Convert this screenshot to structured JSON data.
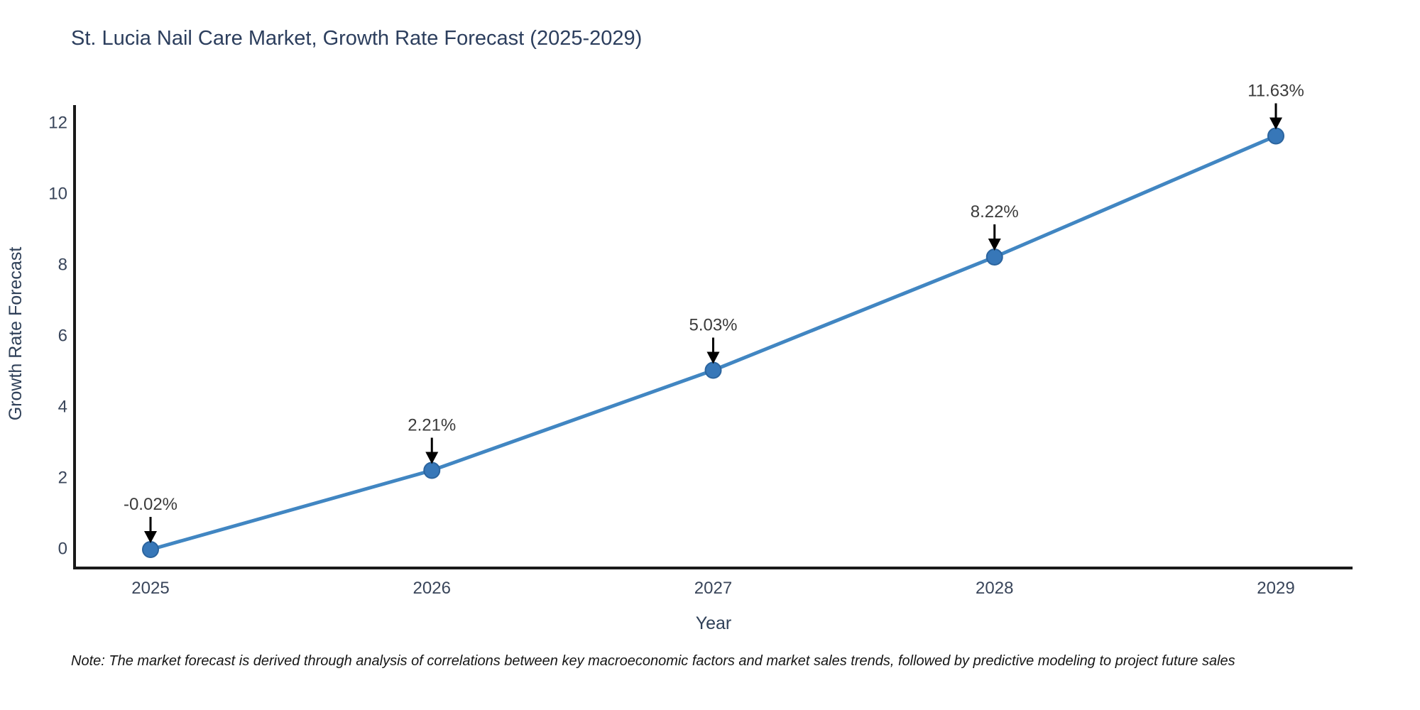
{
  "chart_data": {
    "type": "line",
    "title": "St. Lucia Nail Care Market, Growth Rate Forecast (2025-2029)",
    "xlabel": "Year",
    "ylabel": "Growth Rate Forecast",
    "x": [
      "2025",
      "2026",
      "2027",
      "2028",
      "2029"
    ],
    "series": [
      {
        "name": "Growth Rate Forecast",
        "values": [
          -0.02,
          2.21,
          5.03,
          8.22,
          11.63
        ]
      }
    ],
    "point_labels": [
      "-0.02%",
      "2.21%",
      "5.03%",
      "8.22%",
      "11.63%"
    ],
    "yticks": [
      0,
      2,
      4,
      6,
      8,
      10,
      12
    ],
    "ylim": [
      0,
      12
    ],
    "grid": false,
    "legend": false,
    "colors": {
      "line": "#4186c2",
      "marker": "#3777b8",
      "marker_edge": "#2b649e",
      "arrow": "#000000",
      "axis": "#1a1a1a",
      "title_text": "#2c3e5d",
      "tick_text": "#39455a",
      "annotation_text": "#3b3b3b"
    }
  },
  "note": "Note: The market forecast is derived through analysis of correlations between key macroeconomic factors and market sales trends, followed by predictive modeling to project future sales"
}
